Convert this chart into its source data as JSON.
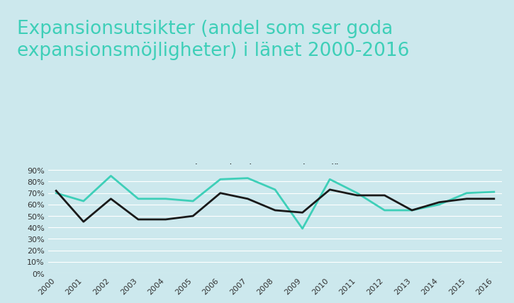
{
  "title_line1": "Expansionsutsikter (andel som ser goda",
  "title_line2": "expansionsmöjligheter) i länet 2000-2016",
  "years": [
    2000,
    2001,
    2002,
    2003,
    2004,
    2005,
    2006,
    2007,
    2008,
    2009,
    2010,
    2011,
    2012,
    2013,
    2014,
    2015,
    2016
  ],
  "industri": [
    70,
    63,
    85,
    65,
    65,
    63,
    82,
    83,
    73,
    39,
    82,
    70,
    55,
    55,
    60,
    70,
    71
  ],
  "tjanster": [
    72,
    45,
    65,
    47,
    47,
    50,
    70,
    65,
    55,
    53,
    73,
    68,
    68,
    55,
    62,
    65,
    65
  ],
  "industri_label": "Kronoberg Industri",
  "tjanster_label": "Kronoberg Tjänster",
  "industri_color": "#3ecfb8",
  "tjanster_color": "#1a1a1a",
  "background_color": "#cce8ed",
  "title_color": "#3ecfb8",
  "grid_color": "#ffffff",
  "yticks": [
    0,
    10,
    20,
    30,
    40,
    50,
    60,
    70,
    80,
    90
  ],
  "ylim": [
    0,
    95
  ],
  "line_width": 2.0,
  "title_fontsize": 19,
  "legend_fontsize": 9,
  "tick_fontsize": 8
}
